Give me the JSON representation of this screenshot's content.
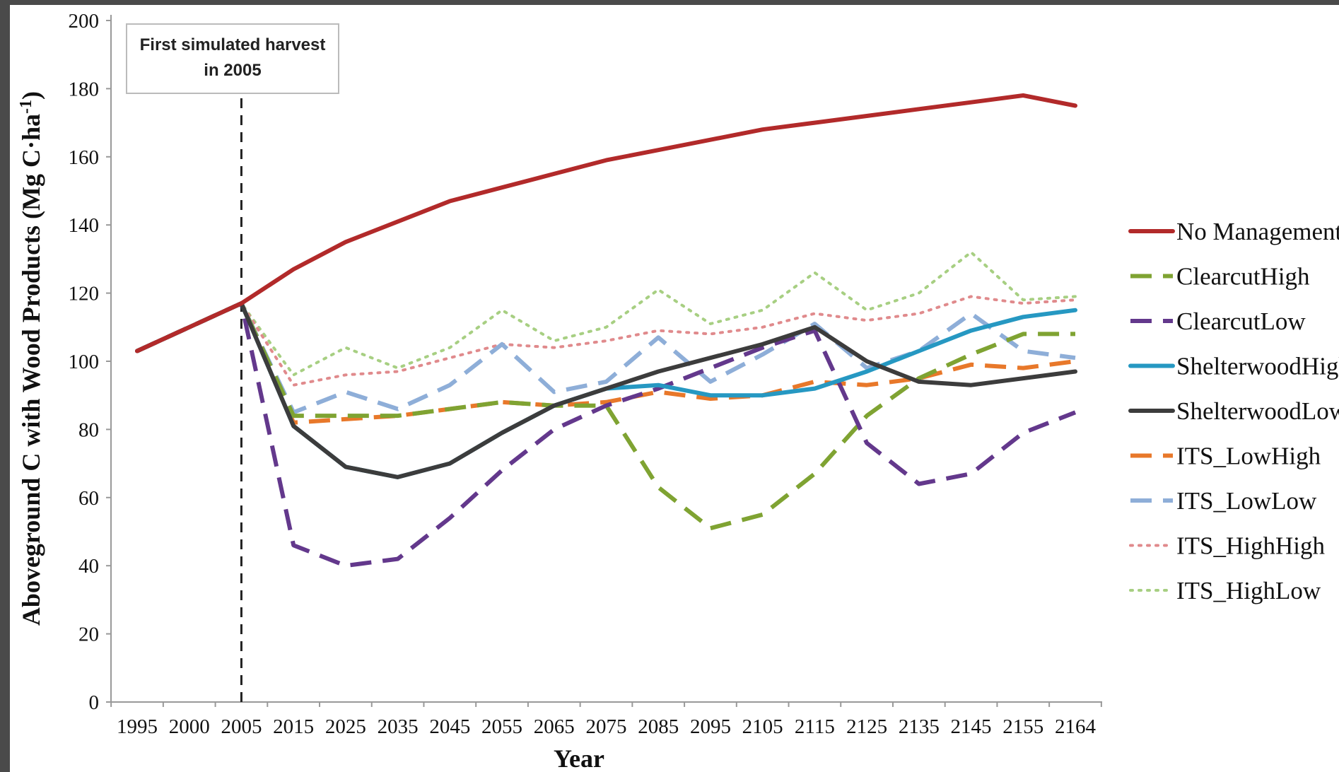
{
  "chart_data": {
    "type": "line",
    "xlabel": "Year",
    "ylabel": "Aboveground C with Wood Products (Mg C·ha",
    "ylabel_superscript": "-1",
    "ylabel_suffix": ")",
    "categories": [
      "1995",
      "2000",
      "2005",
      "2015",
      "2025",
      "2035",
      "2045",
      "2055",
      "2065",
      "2075",
      "2085",
      "2095",
      "2105",
      "2115",
      "2125",
      "2135",
      "2145",
      "2155",
      "2164"
    ],
    "y_ticks": [
      0,
      20,
      40,
      60,
      80,
      100,
      120,
      140,
      160,
      180,
      200
    ],
    "ylim": [
      0,
      200
    ],
    "grid": false,
    "legend_position": "right",
    "annotation": {
      "line1": "First simulated harvest",
      "line2": "in 2005",
      "at_category": "2005"
    },
    "series": [
      {
        "name": "No Management",
        "color": "#b22a2a",
        "style": "solid",
        "values": [
          103,
          110,
          117,
          127,
          135,
          141,
          147,
          151,
          155,
          159,
          162,
          165,
          168,
          170,
          172,
          174,
          176,
          178,
          175
        ]
      },
      {
        "name": "ClearcutHigh",
        "color": "#7fa332",
        "style": "dashed",
        "values": [
          103,
          110,
          117,
          84,
          84,
          84,
          86,
          88,
          87,
          87,
          63,
          51,
          55,
          67,
          84,
          95,
          102,
          108,
          108
        ]
      },
      {
        "name": "ClearcutLow",
        "color": "#63388c",
        "style": "dashed",
        "values": [
          103,
          110,
          117,
          46,
          40,
          42,
          54,
          68,
          80,
          87,
          92,
          98,
          104,
          109,
          76,
          64,
          67,
          79,
          85
        ]
      },
      {
        "name": "ShelterwoodHigh",
        "color": "#2698c2",
        "style": "solid",
        "values": [
          103,
          110,
          117,
          81,
          69,
          66,
          70,
          79,
          87,
          92,
          93,
          90,
          90,
          92,
          97,
          103,
          109,
          113,
          115
        ]
      },
      {
        "name": "ShelterwoodLow",
        "color": "#3c3c3c",
        "style": "solid",
        "values": [
          103,
          110,
          117,
          81,
          69,
          66,
          70,
          79,
          87,
          92,
          97,
          101,
          105,
          110,
          100,
          94,
          93,
          95,
          97
        ]
      },
      {
        "name": "ITS_LowHigh",
        "color": "#e8782a",
        "style": "dashed",
        "values": [
          103,
          110,
          117,
          82,
          83,
          84,
          86,
          88,
          87,
          88,
          91,
          89,
          90,
          94,
          93,
          95,
          99,
          98,
          100
        ]
      },
      {
        "name": "ITS_LowLow",
        "color": "#8eaed8",
        "style": "dashed",
        "values": [
          103,
          110,
          117,
          85,
          91,
          86,
          93,
          105,
          91,
          94,
          107,
          94,
          102,
          111,
          98,
          103,
          114,
          103,
          101
        ]
      },
      {
        "name": "ITS_HighHigh",
        "color": "#e08a8c",
        "style": "dotted",
        "values": [
          103,
          110,
          117,
          93,
          96,
          97,
          101,
          105,
          104,
          106,
          109,
          108,
          110,
          114,
          112,
          114,
          119,
          117,
          118
        ]
      },
      {
        "name": "ITS_HighLow",
        "color": "#a7cf82",
        "style": "dotted",
        "values": [
          103,
          110,
          117,
          96,
          104,
          98,
          104,
          115,
          106,
          110,
          121,
          111,
          115,
          126,
          115,
          120,
          132,
          118,
          119
        ]
      }
    ]
  }
}
